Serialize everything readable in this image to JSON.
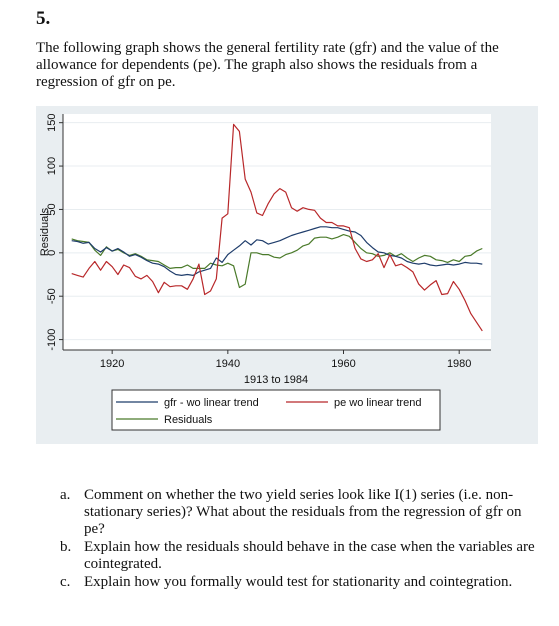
{
  "question": {
    "number": "5.",
    "intro": "The following graph shows the general fertility rate (gfr) and the value of the allowance for dependents (pe). The graph also shows the residuals from a regression of gfr on pe."
  },
  "chart_data": {
    "type": "line",
    "title": "",
    "xlabel": "1913 to 1984",
    "ylabel": "Residuals",
    "xlim": [
      1913,
      1984
    ],
    "ylim": [
      -100,
      150
    ],
    "x_ticks": [
      "1920",
      "1940",
      "1960",
      "1980"
    ],
    "y_ticks": [
      "-100",
      "-50",
      "0",
      "50",
      "100",
      "150"
    ],
    "legend_position": "bottom",
    "series": [
      {
        "name": "gfr - wo linear trend",
        "color": "#1f3d6b",
        "points": [
          [
            1913,
            14
          ],
          [
            1914,
            13
          ],
          [
            1915,
            11
          ],
          [
            1916,
            12
          ],
          [
            1917,
            5
          ],
          [
            1918,
            1
          ],
          [
            1919,
            6
          ],
          [
            1920,
            2
          ],
          [
            1921,
            5
          ],
          [
            1922,
            1
          ],
          [
            1923,
            -4
          ],
          [
            1924,
            -2
          ],
          [
            1925,
            -5
          ],
          [
            1926,
            -9
          ],
          [
            1927,
            -12
          ],
          [
            1928,
            -13
          ],
          [
            1929,
            -16
          ],
          [
            1930,
            -21
          ],
          [
            1931,
            -25
          ],
          [
            1932,
            -26
          ],
          [
            1933,
            -25
          ],
          [
            1934,
            -26
          ],
          [
            1935,
            -22
          ],
          [
            1936,
            -20
          ],
          [
            1937,
            -18
          ],
          [
            1938,
            -6
          ],
          [
            1939,
            -11
          ],
          [
            1940,
            -2
          ],
          [
            1941,
            3
          ],
          [
            1942,
            8
          ],
          [
            1943,
            14
          ],
          [
            1944,
            9
          ],
          [
            1945,
            15
          ],
          [
            1946,
            14
          ],
          [
            1947,
            10
          ],
          [
            1948,
            12
          ],
          [
            1949,
            14
          ],
          [
            1950,
            17
          ],
          [
            1951,
            20
          ],
          [
            1952,
            22
          ],
          [
            1953,
            24
          ],
          [
            1954,
            26
          ],
          [
            1955,
            28
          ],
          [
            1956,
            30
          ],
          [
            1957,
            30
          ],
          [
            1958,
            29
          ],
          [
            1959,
            29
          ],
          [
            1960,
            27
          ],
          [
            1961,
            25
          ],
          [
            1962,
            24
          ],
          [
            1963,
            20
          ],
          [
            1964,
            12
          ],
          [
            1965,
            6
          ],
          [
            1966,
            1
          ],
          [
            1967,
            0
          ],
          [
            1968,
            -3
          ],
          [
            1969,
            -4
          ],
          [
            1970,
            -6
          ],
          [
            1971,
            -10
          ],
          [
            1972,
            -12
          ],
          [
            1973,
            -13
          ],
          [
            1974,
            -12
          ],
          [
            1975,
            -14
          ],
          [
            1976,
            -15
          ],
          [
            1977,
            -14
          ],
          [
            1978,
            -13
          ],
          [
            1979,
            -14
          ],
          [
            1980,
            -13
          ],
          [
            1981,
            -11
          ],
          [
            1982,
            -12
          ],
          [
            1983,
            -12
          ],
          [
            1984,
            -13
          ]
        ]
      },
      {
        "name": "pe wo linear trend",
        "color": "#b8282a",
        "points": [
          [
            1913,
            -24
          ],
          [
            1914,
            -26
          ],
          [
            1915,
            -28
          ],
          [
            1916,
            -18
          ],
          [
            1917,
            -10
          ],
          [
            1918,
            -20
          ],
          [
            1919,
            -10
          ],
          [
            1920,
            -16
          ],
          [
            1921,
            -25
          ],
          [
            1922,
            -14
          ],
          [
            1923,
            -17
          ],
          [
            1924,
            -27
          ],
          [
            1925,
            -30
          ],
          [
            1926,
            -26
          ],
          [
            1927,
            -33
          ],
          [
            1928,
            -46
          ],
          [
            1929,
            -34
          ],
          [
            1930,
            -39
          ],
          [
            1931,
            -38
          ],
          [
            1932,
            -38
          ],
          [
            1933,
            -42
          ],
          [
            1934,
            -30
          ],
          [
            1935,
            -13
          ],
          [
            1936,
            -48
          ],
          [
            1937,
            -44
          ],
          [
            1938,
            -30
          ],
          [
            1939,
            40
          ],
          [
            1940,
            45
          ],
          [
            1941,
            148
          ],
          [
            1942,
            140
          ],
          [
            1943,
            85
          ],
          [
            1944,
            70
          ],
          [
            1945,
            46
          ],
          [
            1946,
            43
          ],
          [
            1947,
            57
          ],
          [
            1948,
            68
          ],
          [
            1949,
            74
          ],
          [
            1950,
            70
          ],
          [
            1951,
            52
          ],
          [
            1952,
            48
          ],
          [
            1953,
            52
          ],
          [
            1954,
            50
          ],
          [
            1955,
            49
          ],
          [
            1956,
            40
          ],
          [
            1957,
            35
          ],
          [
            1958,
            35
          ],
          [
            1959,
            31
          ],
          [
            1960,
            31
          ],
          [
            1961,
            29
          ],
          [
            1962,
            5
          ],
          [
            1963,
            -7
          ],
          [
            1964,
            -10
          ],
          [
            1965,
            -8
          ],
          [
            1966,
            -1
          ],
          [
            1967,
            -17
          ],
          [
            1968,
            -2
          ],
          [
            1969,
            -15
          ],
          [
            1970,
            -13
          ],
          [
            1971,
            -17
          ],
          [
            1972,
            -22
          ],
          [
            1973,
            -36
          ],
          [
            1974,
            -43
          ],
          [
            1975,
            -37
          ],
          [
            1976,
            -32
          ],
          [
            1977,
            -48
          ],
          [
            1978,
            -47
          ],
          [
            1979,
            -33
          ],
          [
            1980,
            -42
          ],
          [
            1981,
            -55
          ],
          [
            1982,
            -70
          ],
          [
            1983,
            -80
          ],
          [
            1984,
            -90
          ]
        ]
      },
      {
        "name": "Residuals",
        "color": "#4a7a2a",
        "points": [
          [
            1913,
            16
          ],
          [
            1914,
            14
          ],
          [
            1915,
            13
          ],
          [
            1916,
            12
          ],
          [
            1917,
            3
          ],
          [
            1918,
            -3
          ],
          [
            1919,
            7
          ],
          [
            1920,
            2
          ],
          [
            1921,
            4
          ],
          [
            1922,
            0
          ],
          [
            1923,
            -3
          ],
          [
            1924,
            -1
          ],
          [
            1925,
            -4
          ],
          [
            1926,
            -8
          ],
          [
            1927,
            -9
          ],
          [
            1928,
            -10
          ],
          [
            1929,
            -14
          ],
          [
            1930,
            -18
          ],
          [
            1931,
            -17
          ],
          [
            1932,
            -17
          ],
          [
            1933,
            -14
          ],
          [
            1934,
            -18
          ],
          [
            1935,
            -18
          ],
          [
            1936,
            -18
          ],
          [
            1937,
            -12
          ],
          [
            1938,
            -14
          ],
          [
            1939,
            -15
          ],
          [
            1940,
            -12
          ],
          [
            1941,
            -15
          ],
          [
            1942,
            -40
          ],
          [
            1943,
            -36
          ],
          [
            1944,
            0
          ],
          [
            1945,
            0
          ],
          [
            1946,
            -2
          ],
          [
            1947,
            -2
          ],
          [
            1948,
            -5
          ],
          [
            1949,
            -6
          ],
          [
            1950,
            -2
          ],
          [
            1951,
            0
          ],
          [
            1952,
            3
          ],
          [
            1953,
            8
          ],
          [
            1954,
            10
          ],
          [
            1955,
            17
          ],
          [
            1956,
            18
          ],
          [
            1957,
            18
          ],
          [
            1958,
            16
          ],
          [
            1959,
            18
          ],
          [
            1960,
            21
          ],
          [
            1961,
            19
          ],
          [
            1962,
            12
          ],
          [
            1963,
            5
          ],
          [
            1964,
            0
          ],
          [
            1965,
            -1
          ],
          [
            1966,
            -4
          ],
          [
            1967,
            -3
          ],
          [
            1968,
            0
          ],
          [
            1969,
            -4
          ],
          [
            1970,
            -1
          ],
          [
            1971,
            -6
          ],
          [
            1972,
            -10
          ],
          [
            1973,
            -6
          ],
          [
            1974,
            -3
          ],
          [
            1975,
            -4
          ],
          [
            1976,
            -8
          ],
          [
            1977,
            -9
          ],
          [
            1978,
            -11
          ],
          [
            1979,
            -8
          ],
          [
            1980,
            -10
          ],
          [
            1981,
            -4
          ],
          [
            1982,
            -3
          ],
          [
            1983,
            2
          ],
          [
            1984,
            5
          ]
        ]
      }
    ]
  },
  "questions": [
    {
      "label": "a.",
      "text": "Comment on whether the two yield series look like I(1) series (i.e. non-stationary series)? What about the residuals from the regression of gfr on pe?"
    },
    {
      "label": "b.",
      "text": "Explain how the residuals should behave in the case when the variables are cointegrated."
    },
    {
      "label": "c.",
      "text": "Explain how you formally would test for stationarity and cointegration."
    }
  ]
}
